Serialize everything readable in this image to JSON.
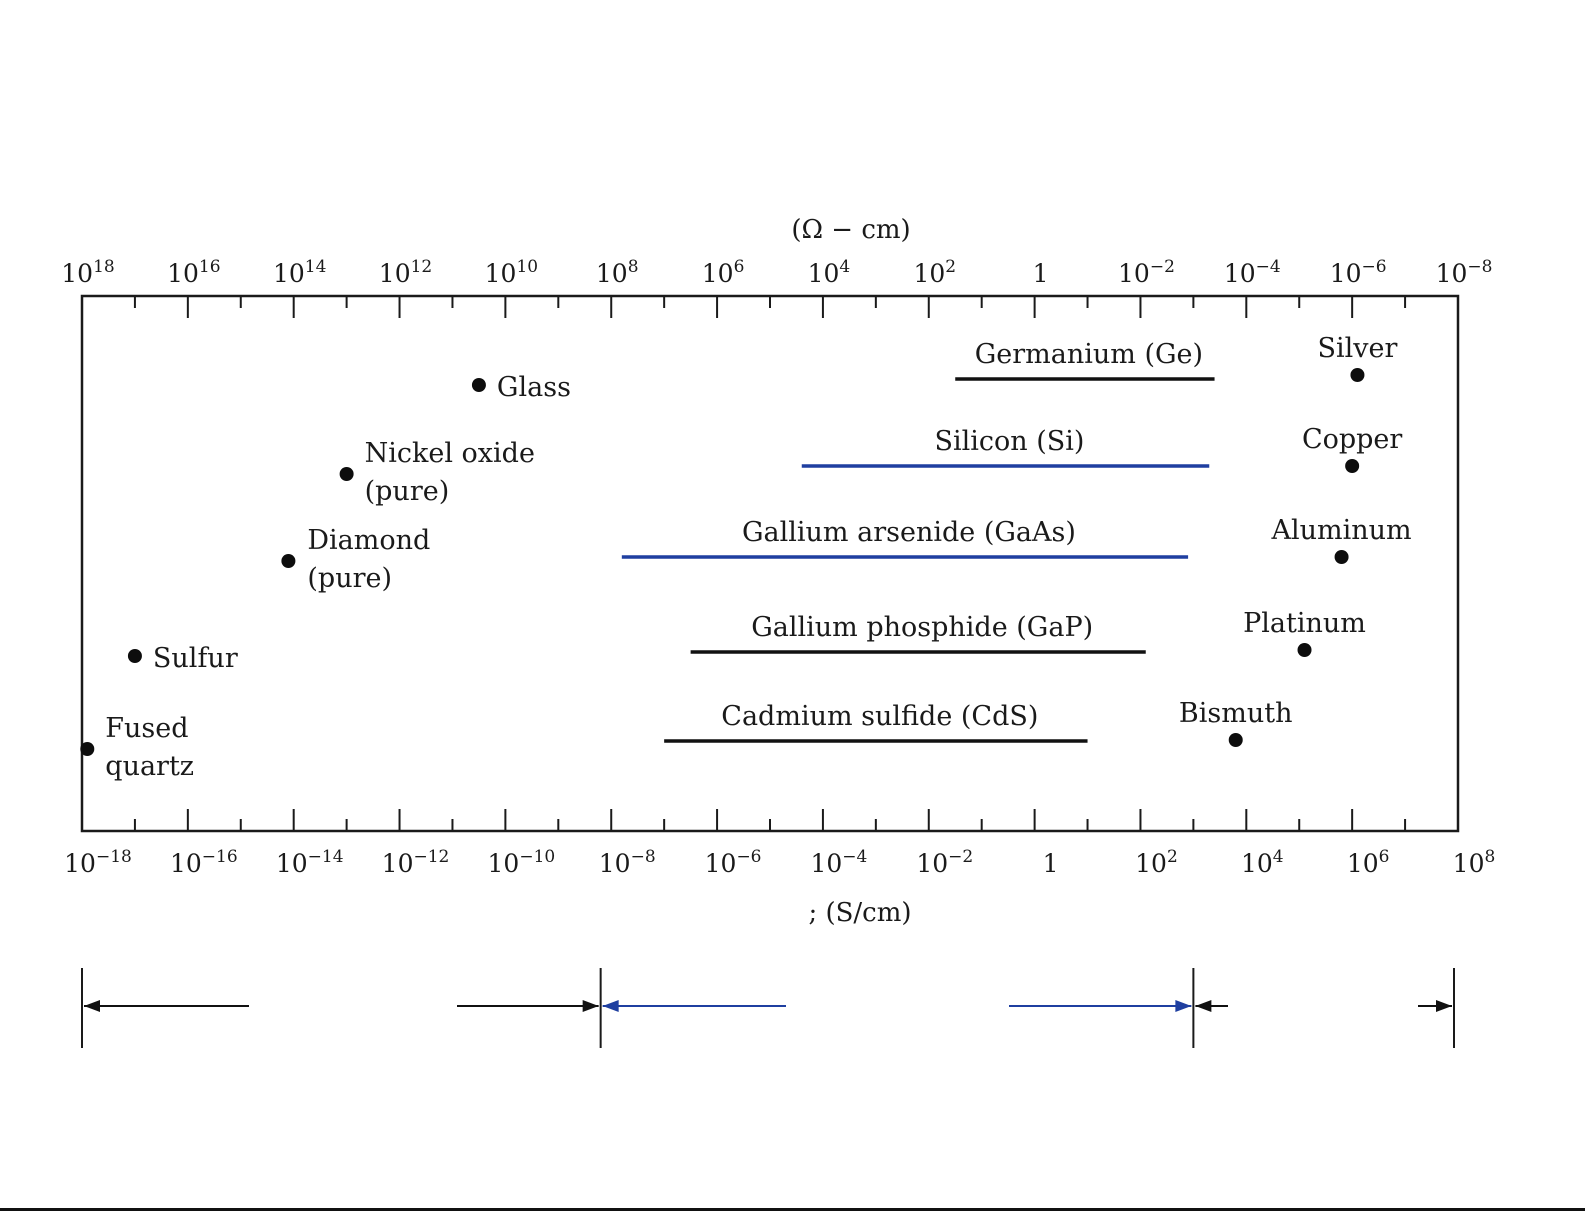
{
  "chart_data": {
    "type": "scatter",
    "top_axis": {
      "label": "(Ω − cm)",
      "ticks": [
        {
          "exp": 18,
          "text": "10^18"
        },
        {
          "exp": 16,
          "text": "10^16"
        },
        {
          "exp": 14,
          "text": "10^14"
        },
        {
          "exp": 12,
          "text": "10^12"
        },
        {
          "exp": 10,
          "text": "10^10"
        },
        {
          "exp": 8,
          "text": "10^8"
        },
        {
          "exp": 6,
          "text": "10^6"
        },
        {
          "exp": 4,
          "text": "10^4"
        },
        {
          "exp": 2,
          "text": "10^2"
        },
        {
          "exp": 0,
          "text": "1"
        },
        {
          "exp": -2,
          "text": "10^−2"
        },
        {
          "exp": -4,
          "text": "10^−4"
        },
        {
          "exp": -6,
          "text": "10^−6"
        },
        {
          "exp": -8,
          "text": "10^−8"
        }
      ]
    },
    "bottom_axis": {
      "label": "; (S/cm)",
      "range_exp": [
        -18,
        8
      ],
      "ticks": [
        {
          "exp": -18,
          "text": "10^−18"
        },
        {
          "exp": -16,
          "text": "10^−16"
        },
        {
          "exp": -14,
          "text": "10^−14"
        },
        {
          "exp": -12,
          "text": "10^−12"
        },
        {
          "exp": -10,
          "text": "10^−10"
        },
        {
          "exp": -8,
          "text": "10^−8"
        },
        {
          "exp": -6,
          "text": "10^−6"
        },
        {
          "exp": -4,
          "text": "10^−4"
        },
        {
          "exp": -2,
          "text": "10^−2"
        },
        {
          "exp": 0,
          "text": "1"
        },
        {
          "exp": 2,
          "text": "10^2"
        },
        {
          "exp": 4,
          "text": "10^4"
        },
        {
          "exp": 6,
          "text": "10^6"
        },
        {
          "exp": 8,
          "text": "10^8"
        }
      ]
    },
    "points": [
      {
        "name": "Glass",
        "conductivity_exp": -10.5,
        "label": [
          "Glass"
        ]
      },
      {
        "name": "Nickel oxide (pure)",
        "conductivity_exp": -13.0,
        "label": [
          "Nickel oxide",
          "(pure)"
        ]
      },
      {
        "name": "Diamond (pure)",
        "conductivity_exp": -14.1,
        "label": [
          "Diamond",
          "(pure)"
        ]
      },
      {
        "name": "Sulfur",
        "conductivity_exp": -17.0,
        "label": [
          "Sulfur"
        ]
      },
      {
        "name": "Fused quartz",
        "conductivity_exp": -17.9,
        "label": [
          "Fused",
          "quartz"
        ]
      },
      {
        "name": "Silver",
        "conductivity_exp": 6.1,
        "label": [
          "Silver"
        ]
      },
      {
        "name": "Copper",
        "conductivity_exp": 6.0,
        "label": [
          "Copper"
        ]
      },
      {
        "name": "Aluminum",
        "conductivity_exp": 5.8,
        "label": [
          "Aluminum"
        ]
      },
      {
        "name": "Platinum",
        "conductivity_exp": 5.1,
        "label": [
          "Platinum"
        ]
      },
      {
        "name": "Bismuth",
        "conductivity_exp": 3.8,
        "label": [
          "Bismuth"
        ]
      }
    ],
    "ranges": [
      {
        "name": "Germanium (Ge)",
        "from_exp": -1.5,
        "to_exp": 3.4,
        "color": "#111111"
      },
      {
        "name": "Silicon (Si)",
        "from_exp": -4.4,
        "to_exp": 3.3,
        "color": "#1f3fa0"
      },
      {
        "name": "Gallium arsenide (GaAs)",
        "from_exp": -7.8,
        "to_exp": 2.9,
        "color": "#1f3fa0"
      },
      {
        "name": "Gallium phosphide (GaP)",
        "from_exp": -6.5,
        "to_exp": 2.1,
        "color": "#111111"
      },
      {
        "name": "Cadmium sulfide (CdS)",
        "from_exp": -7.0,
        "to_exp": 1.0,
        "color": "#111111"
      }
    ],
    "class_arrows": [
      {
        "from_exp": -18,
        "to_exp": -8.2,
        "color": "#111111"
      },
      {
        "from_exp": -8.2,
        "to_exp": 3.0,
        "color": "#1f3fa0"
      },
      {
        "from_exp": 3.0,
        "to_exp": 8,
        "color": "#111111"
      }
    ],
    "grid": false
  }
}
